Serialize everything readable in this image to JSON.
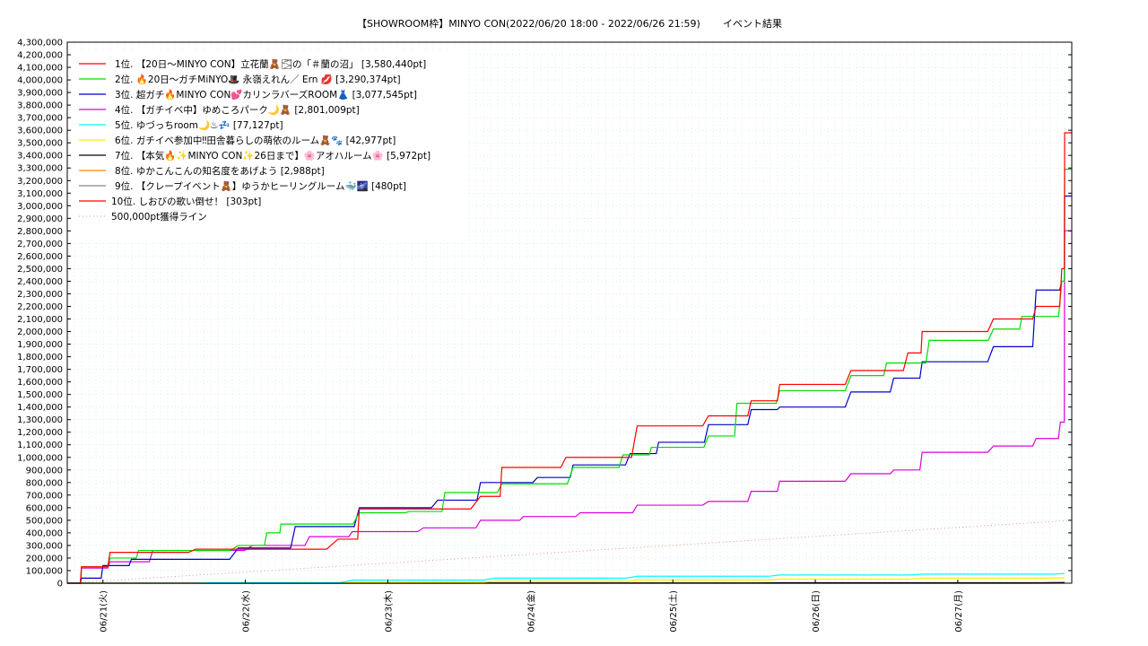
{
  "chart_data": {
    "type": "line",
    "title": "【SHOWROOM枠】MINYO CON(2022/06/20 18:00 - 2022/06/26 21:59)",
    "title_suffix": "イベント結果",
    "x_ticks": [
      "06/21(火)",
      "06/22(水)",
      "06/23(木)",
      "06/24(金)",
      "06/25(土)",
      "06/26(日)",
      "06/27(月)"
    ],
    "x_range": [
      "06/20 18:00",
      "06/27 00:00"
    ],
    "y_ticks": [
      "0",
      "100,000",
      "200,000",
      "300,000",
      "400,000",
      "500,000",
      "600,000",
      "700,000",
      "800,000",
      "900,000",
      "1,000,000",
      "1,100,000",
      "1,200,000",
      "1,300,000",
      "1,400,000",
      "1,500,000",
      "1,600,000",
      "1,700,000",
      "1,800,000",
      "1,900,000",
      "2,000,000",
      "2,100,000",
      "2,200,000",
      "2,300,000",
      "2,400,000",
      "2,500,000",
      "2,600,000",
      "2,700,000",
      "2,800,000",
      "2,900,000",
      "3,000,000",
      "3,100,000",
      "3,200,000",
      "3,300,000",
      "3,400,000",
      "3,500,000",
      "3,600,000",
      "3,700,000",
      "3,800,000",
      "3,900,000",
      "4,000,000",
      "4,100,000",
      "4,200,000",
      "4,300,000"
    ],
    "ylim": [
      0,
      4300000
    ],
    "grid": true,
    "legend_position": "top-left",
    "series": [
      {
        "name": "1位. 【20日〜MINYO CON】立花蘭🧸🌫の「＃蘭の沼」 [3,580,440pt]",
        "color": "#ff0000",
        "points": [
          [
            0,
            0
          ],
          [
            0.1,
            130000
          ],
          [
            0.3,
            245000
          ],
          [
            0.9,
            270000
          ],
          [
            1.9,
            350000
          ],
          [
            2.05,
            590000
          ],
          [
            2.9,
            690000
          ],
          [
            3.05,
            920000
          ],
          [
            3.5,
            1000000
          ],
          [
            4,
            1250000
          ],
          [
            4.5,
            1330000
          ],
          [
            4.8,
            1450000
          ],
          [
            5,
            1580000
          ],
          [
            5.5,
            1690000
          ],
          [
            5.9,
            1830000
          ],
          [
            6,
            2000000
          ],
          [
            6.5,
            2100000
          ],
          [
            6.8,
            2200000
          ],
          [
            6.98,
            2500000
          ],
          [
            7,
            3580000
          ],
          [
            7.05,
            3580440
          ]
        ]
      },
      {
        "name": "2位. 🔥20日〜ガチMiNYO🎩 永嶺えれん／ Ern 💋 [3,290,374pt]",
        "color": "#00dd00",
        "points": [
          [
            0,
            0
          ],
          [
            0.1,
            130000
          ],
          [
            0.3,
            200000
          ],
          [
            0.5,
            260000
          ],
          [
            1.2,
            300000
          ],
          [
            1.4,
            400000
          ],
          [
            1.5,
            470000
          ],
          [
            2.05,
            560000
          ],
          [
            2.4,
            570000
          ],
          [
            2.65,
            720000
          ],
          [
            3.05,
            790000
          ],
          [
            3.55,
            920000
          ],
          [
            3.9,
            1020000
          ],
          [
            4.1,
            1080000
          ],
          [
            4.5,
            1170000
          ],
          [
            4.7,
            1430000
          ],
          [
            5,
            1530000
          ],
          [
            5.5,
            1650000
          ],
          [
            5.75,
            1750000
          ],
          [
            6.05,
            1930000
          ],
          [
            6.5,
            2020000
          ],
          [
            6.7,
            2120000
          ],
          [
            6.98,
            2400000
          ],
          [
            7,
            3290000
          ],
          [
            7.05,
            3290374
          ]
        ]
      },
      {
        "name": "3位. 超ガチ🔥MINYO CON💕カリンラバーズROOM👗 [3,077,545pt]",
        "color": "#0000cc",
        "points": [
          [
            0,
            0
          ],
          [
            0.1,
            40000
          ],
          [
            0.25,
            140000
          ],
          [
            0.45,
            190000
          ],
          [
            1.2,
            280000
          ],
          [
            1.6,
            450000
          ],
          [
            2.05,
            600000
          ],
          [
            2.6,
            660000
          ],
          [
            2.9,
            800000
          ],
          [
            3.3,
            840000
          ],
          [
            3.55,
            940000
          ],
          [
            3.95,
            1030000
          ],
          [
            4.15,
            1120000
          ],
          [
            4.5,
            1260000
          ],
          [
            4.8,
            1380000
          ],
          [
            5,
            1400000
          ],
          [
            5.5,
            1520000
          ],
          [
            5.8,
            1630000
          ],
          [
            6,
            1760000
          ],
          [
            6.5,
            1880000
          ],
          [
            6.8,
            2330000
          ],
          [
            6.98,
            2400000
          ],
          [
            7,
            3077000
          ],
          [
            7.05,
            3077545
          ]
        ]
      },
      {
        "name": "4位. 【ガチイベ中】ゆめころパーク🌙🧸 [2,801,009pt]",
        "color": "#dd00dd",
        "points": [
          [
            0,
            0
          ],
          [
            0.1,
            120000
          ],
          [
            0.3,
            170000
          ],
          [
            0.6,
            260000
          ],
          [
            1.3,
            300000
          ],
          [
            1.7,
            370000
          ],
          [
            2,
            410000
          ],
          [
            2.5,
            440000
          ],
          [
            2.9,
            500000
          ],
          [
            3.2,
            530000
          ],
          [
            3.6,
            560000
          ],
          [
            4,
            620000
          ],
          [
            4.5,
            650000
          ],
          [
            4.8,
            730000
          ],
          [
            5,
            810000
          ],
          [
            5.5,
            870000
          ],
          [
            5.8,
            900000
          ],
          [
            6,
            1040000
          ],
          [
            6.5,
            1090000
          ],
          [
            6.8,
            1150000
          ],
          [
            6.97,
            1280000
          ],
          [
            7,
            2801009
          ],
          [
            7.05,
            2801009
          ]
        ]
      },
      {
        "name": "5位. ゆづっちroom🌙♨💤 [77,127pt]",
        "color": "#00ffff",
        "points": [
          [
            0,
            0
          ],
          [
            1,
            5000
          ],
          [
            2,
            25000
          ],
          [
            3,
            40000
          ],
          [
            4,
            55000
          ],
          [
            5,
            65000
          ],
          [
            6,
            72000
          ],
          [
            7,
            77127
          ]
        ]
      },
      {
        "name": "6位. ガチイベ参加中‼田舎暮らしの萌依のルーム🧸🐾 [42,977pt]",
        "color": "#ffee00",
        "points": [
          [
            0,
            0
          ],
          [
            1,
            3000
          ],
          [
            2,
            8000
          ],
          [
            3,
            15000
          ],
          [
            4,
            25000
          ],
          [
            5,
            33000
          ],
          [
            6,
            40000
          ],
          [
            7,
            42977
          ]
        ]
      },
      {
        "name": "7位. 【本気🔥✨MINYO CON✨26日まで】🌸アオハルーム🌸 [5,972pt]",
        "color": "#000000",
        "points": [
          [
            0,
            0
          ],
          [
            3,
            2000
          ],
          [
            5,
            4000
          ],
          [
            7,
            5972
          ]
        ]
      },
      {
        "name": "8位. ゆかこんこんの知名度をあげよう [2,988pt]",
        "color": "#ff8800",
        "points": [
          [
            0,
            0
          ],
          [
            4,
            1500
          ],
          [
            7,
            2988
          ]
        ]
      },
      {
        "name": "9位. 【クレープイベント🧸】ゆうかヒーリングルーム🐳🌌 [480pt]",
        "color": "#888888",
        "points": [
          [
            0,
            0
          ],
          [
            7,
            480
          ]
        ]
      },
      {
        "name": "10位. しおびの歌い倒せ！ [303pt]",
        "color": "#ff0000",
        "points": [
          [
            0,
            0
          ],
          [
            7,
            303
          ]
        ]
      }
    ],
    "reference_line": {
      "name": "500,000pt獲得ライン",
      "color": "#dd9999",
      "points": [
        [
          0,
          0
        ],
        [
          7.05,
          500000
        ]
      ]
    }
  }
}
